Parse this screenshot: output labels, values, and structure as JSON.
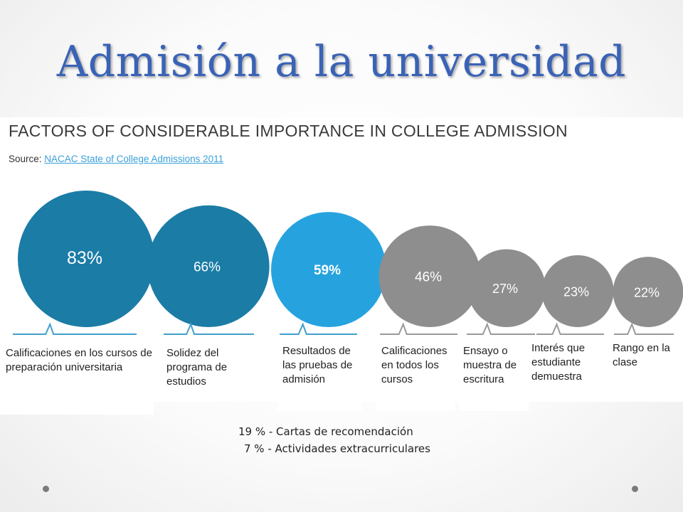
{
  "slide": {
    "title": "Admisión a la universidad"
  },
  "chart_data": {
    "type": "bubble",
    "title": "FACTORS OF CONSIDERABLE IMPORTANCE IN COLLEGE ADMISSION",
    "source_prefix": "Source:",
    "source_link": "NACAC State of College Admissions 2011",
    "colors": {
      "dark_blue": "#1b7ca6",
      "light_blue": "#26a3df",
      "gray": "#8e8e8e",
      "line_blue": "#3fa0cc",
      "line_gray": "#9a9a9a"
    },
    "items": [
      {
        "value": 83,
        "value_label": "83%",
        "color": "dark_blue",
        "label": "Calificaciones en los cursos de preparación universitaria"
      },
      {
        "value": 66,
        "value_label": "66%",
        "color": "dark_blue",
        "label": "Solidez del programa de estudios"
      },
      {
        "value": 59,
        "value_label": "59%",
        "color": "light_blue",
        "label": "Resultados de las pruebas de admisión"
      },
      {
        "value": 46,
        "value_label": "46%",
        "color": "gray",
        "label": "Calificaciones en todos los cursos"
      },
      {
        "value": 27,
        "value_label": "27%",
        "color": "gray",
        "label": "Ensayo o muestra de escritura"
      },
      {
        "value": 23,
        "value_label": "23%",
        "color": "gray",
        "label": "Interés que estudiante demuestra"
      },
      {
        "value": 22,
        "value_label": "22%",
        "color": "gray",
        "label": "Rango en la clase"
      }
    ]
  },
  "footnotes": {
    "line1": "19 % - Cartas de recomendación",
    "line2": "7 % - Actividades extracurriculares"
  }
}
